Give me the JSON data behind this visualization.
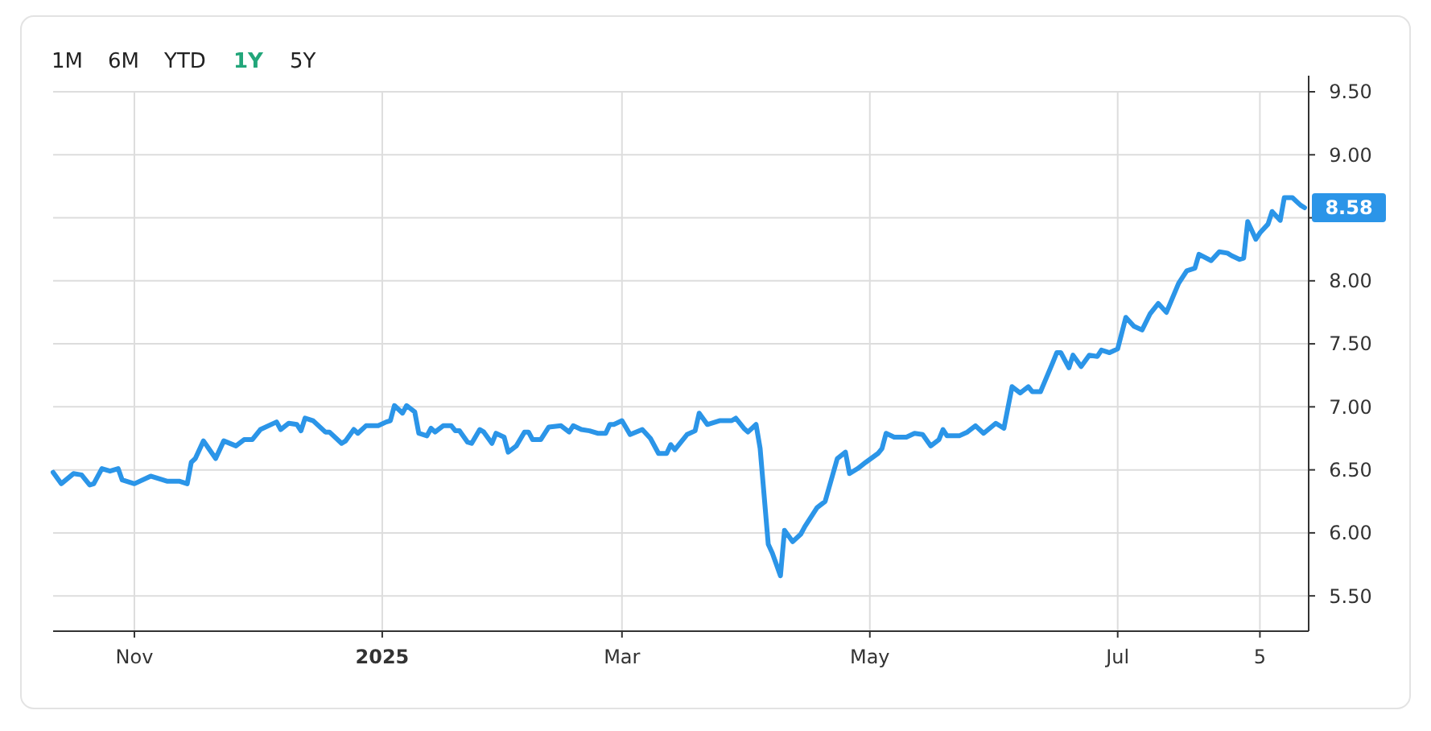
{
  "chart_data": {
    "type": "line",
    "x": [
      "2024-10-12",
      "2024-10-14",
      "2024-10-17",
      "2024-10-19",
      "2024-10-21",
      "2024-10-22",
      "2024-10-24",
      "2024-10-26",
      "2024-10-28",
      "2024-10-29",
      "2024-11-01",
      "2024-11-05",
      "2024-11-09",
      "2024-11-12",
      "2024-11-14",
      "2024-11-15",
      "2024-11-16",
      "2024-11-18",
      "2024-11-21",
      "2024-11-23",
      "2024-11-26",
      "2024-11-28",
      "2024-11-30",
      "2024-12-02",
      "2024-12-06",
      "2024-12-07",
      "2024-12-09",
      "2024-12-11",
      "2024-12-12",
      "2024-12-13",
      "2024-12-15",
      "2024-12-18",
      "2024-12-19",
      "2024-12-22",
      "2024-12-23",
      "2024-12-25",
      "2024-12-26",
      "2024-12-28",
      "2024-12-31",
      "2025-01-02",
      "2025-01-03",
      "2025-01-04",
      "2025-01-06",
      "2025-01-07",
      "2025-01-09",
      "2025-01-10",
      "2025-01-12",
      "2025-01-13",
      "2025-01-14",
      "2025-01-16",
      "2025-01-18",
      "2025-01-19",
      "2025-01-20",
      "2025-01-22",
      "2025-01-23",
      "2025-01-25",
      "2025-01-26",
      "2025-01-28",
      "2025-01-29",
      "2025-01-31",
      "2025-02-01",
      "2025-02-03",
      "2025-02-05",
      "2025-02-06",
      "2025-02-07",
      "2025-02-09",
      "2025-02-11",
      "2025-02-14",
      "2025-02-16",
      "2025-02-17",
      "2025-02-19",
      "2025-02-21",
      "2025-02-23",
      "2025-02-25",
      "2025-02-26",
      "2025-02-27",
      "2025-03-01",
      "2025-03-03",
      "2025-03-06",
      "2025-03-08",
      "2025-03-10",
      "2025-03-12",
      "2025-03-13",
      "2025-03-14",
      "2025-03-17",
      "2025-03-19",
      "2025-03-20",
      "2025-03-22",
      "2025-03-25",
      "2025-03-28",
      "2025-03-29",
      "2025-03-31",
      "2025-04-01",
      "2025-04-03",
      "2025-04-04",
      "2025-04-06",
      "2025-04-07",
      "2025-04-09",
      "2025-04-10",
      "2025-04-12",
      "2025-04-14",
      "2025-04-15",
      "2025-04-18",
      "2025-04-20",
      "2025-04-23",
      "2025-04-25",
      "2025-04-26",
      "2025-04-28",
      "2025-04-30",
      "2025-05-03",
      "2025-05-04",
      "2025-05-05",
      "2025-05-07",
      "2025-05-10",
      "2025-05-12",
      "2025-05-14",
      "2025-05-16",
      "2025-05-18",
      "2025-05-19",
      "2025-05-20",
      "2025-05-23",
      "2025-05-25",
      "2025-05-27",
      "2025-05-29",
      "2025-06-01",
      "2025-06-03",
      "2025-06-05",
      "2025-06-07",
      "2025-06-09",
      "2025-06-10",
      "2025-06-12",
      "2025-06-15",
      "2025-06-16",
      "2025-06-17",
      "2025-06-19",
      "2025-06-20",
      "2025-06-22",
      "2025-06-24",
      "2025-06-26",
      "2025-06-27",
      "2025-06-29",
      "2025-07-01",
      "2025-07-03",
      "2025-07-05",
      "2025-07-07",
      "2025-07-09",
      "2025-07-11",
      "2025-07-13",
      "2025-07-16",
      "2025-07-18",
      "2025-07-20",
      "2025-07-21",
      "2025-07-24",
      "2025-07-26",
      "2025-07-28",
      "2025-07-29",
      "2025-07-31",
      "2025-08-01",
      "2025-08-02",
      "2025-08-04",
      "2025-08-05",
      "2025-08-07",
      "2025-08-08",
      "2025-08-10",
      "2025-08-11",
      "2025-08-13",
      "2025-08-15",
      "2025-08-16"
    ],
    "series": [
      {
        "color": "#2b95e8",
        "values": [
          6.48,
          6.39,
          6.47,
          6.46,
          6.38,
          6.39,
          6.51,
          6.49,
          6.51,
          6.42,
          6.39,
          6.45,
          6.41,
          6.41,
          6.39,
          6.56,
          6.59,
          6.73,
          6.59,
          6.73,
          6.69,
          6.74,
          6.74,
          6.82,
          6.88,
          6.82,
          6.87,
          6.86,
          6.81,
          6.91,
          6.89,
          6.8,
          6.8,
          6.71,
          6.73,
          6.82,
          6.79,
          6.85,
          6.85,
          6.88,
          6.89,
          7.01,
          6.95,
          7.01,
          6.96,
          6.79,
          6.77,
          6.83,
          6.8,
          6.85,
          6.85,
          6.81,
          6.81,
          6.72,
          6.71,
          6.82,
          6.8,
          6.71,
          6.79,
          6.76,
          6.64,
          6.69,
          6.8,
          6.8,
          6.74,
          6.74,
          6.84,
          6.85,
          6.8,
          6.85,
          6.82,
          6.81,
          6.79,
          6.79,
          6.86,
          6.86,
          6.89,
          6.78,
          6.82,
          6.75,
          6.63,
          6.63,
          6.7,
          6.66,
          6.78,
          6.81,
          6.95,
          6.86,
          6.89,
          6.89,
          6.91,
          6.83,
          6.8,
          6.86,
          6.67,
          5.91,
          5.84,
          5.66,
          6.02,
          5.93,
          5.99,
          6.05,
          6.2,
          6.25,
          6.59,
          6.64,
          6.47,
          6.51,
          6.56,
          6.63,
          6.67,
          6.79,
          6.76,
          6.76,
          6.79,
          6.78,
          6.69,
          6.74,
          6.82,
          6.77,
          6.77,
          6.8,
          6.85,
          6.79,
          6.87,
          6.83,
          7.16,
          7.11,
          7.16,
          7.12,
          7.12,
          7.35,
          7.43,
          7.43,
          7.31,
          7.41,
          7.32,
          7.41,
          7.4,
          7.45,
          7.43,
          7.46,
          7.71,
          7.64,
          7.61,
          7.74,
          7.82,
          7.75,
          7.98,
          8.08,
          8.1,
          8.21,
          8.16,
          8.23,
          8.22,
          8.2,
          8.17,
          8.18,
          8.47,
          8.33,
          8.38,
          8.45,
          8.55,
          8.48,
          8.66,
          8.66,
          8.6,
          8.58
        ]
      }
    ],
    "xlim": [
      "2024-10-12",
      "2025-08-17"
    ],
    "xticks": [
      {
        "value": "2024-11-01",
        "label": "Nov"
      },
      {
        "value": "2025-01-01",
        "label": "2025"
      },
      {
        "value": "2025-03-01",
        "label": "Mar"
      },
      {
        "value": "2025-05-01",
        "label": "May"
      },
      {
        "value": "2025-07-01",
        "label": "Jul"
      },
      {
        "value": "2025-08-05",
        "label": "5"
      }
    ],
    "ylim": [
      5.22,
      9.5
    ],
    "yticks": [
      {
        "value": 5.5,
        "label": "5.50"
      },
      {
        "value": 6,
        "label": "6.00"
      },
      {
        "value": 6.5,
        "label": "6.50"
      },
      {
        "value": 7,
        "label": "7.00"
      },
      {
        "value": 7.5,
        "label": "7.50"
      },
      {
        "value": 8,
        "label": "8.00"
      },
      {
        "value": 8.5,
        "label": null
      },
      {
        "value": 9,
        "label": "9.00"
      },
      {
        "value": 9.5,
        "label": "9.50"
      }
    ],
    "grid": true,
    "marker": "none",
    "line_style": "solid",
    "annotations": [
      "1M",
      "6M",
      "YTD",
      "1Y",
      "5Y",
      "8.58"
    ]
  }
}
